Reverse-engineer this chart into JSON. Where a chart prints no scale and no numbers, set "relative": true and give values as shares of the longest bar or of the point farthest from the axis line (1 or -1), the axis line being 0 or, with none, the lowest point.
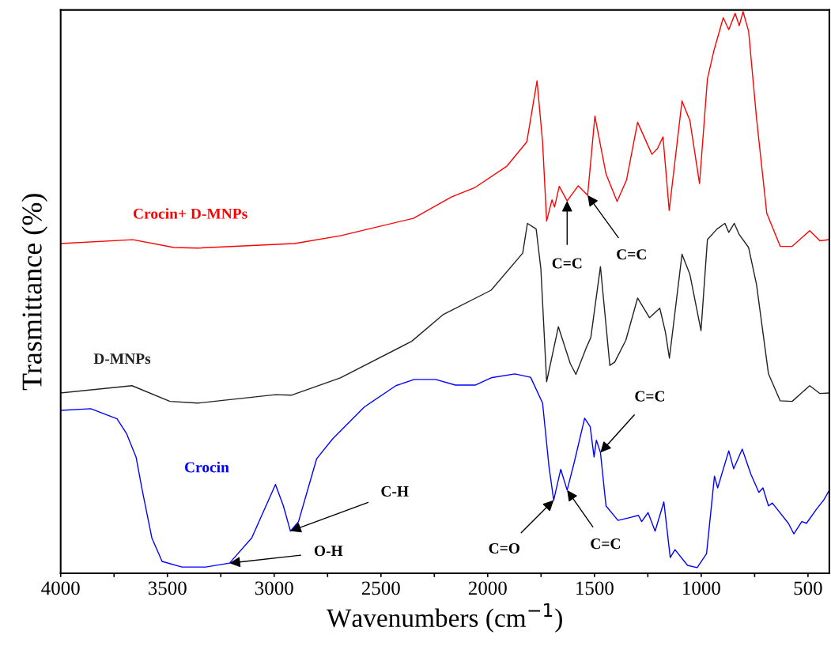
{
  "chart_data": {
    "type": "line",
    "relative": true,
    "xlabel": "Wavenumbers (cm$^{−1}$)",
    "ylabel": "Trasmittance (%)",
    "xlim": [
      4000,
      400
    ],
    "xticks": [
      4000,
      {
        "value": 3750,
        "label": null
      },
      3500,
      {
        "value": 3250,
        "label": null
      },
      3000,
      {
        "value": 2750,
        "label": null
      },
      2500,
      {
        "value": 2250,
        "label": null
      },
      2000,
      {
        "value": 1750,
        "label": null
      },
      1500,
      {
        "value": 1250,
        "label": null
      },
      1000,
      {
        "value": 750,
        "label": null
      },
      500
    ],
    "tick_labels": "x",
    "grid": false,
    "legend": false,
    "marker": "none",
    "line_style": "solid",
    "series": [
      {
        "name": "Crocin+ D-MNPs",
        "color": "#ff0000",
        "x": [
          4000,
          3662,
          3469,
          3358,
          2905,
          2690,
          2348,
          2170,
          2059,
          1910,
          1817,
          1769,
          1743,
          1724,
          1699,
          1687,
          1665,
          1628,
          1576,
          1532,
          1498,
          1446,
          1394,
          1350,
          1298,
          1231,
          1205,
          1179,
          1150,
          1090,
          1053,
          1008,
          971,
          941,
          897,
          871,
          841,
          822,
          804,
          778,
          741,
          693,
          630,
          574,
          492,
          444,
          400
        ],
        "values": [
          0.587,
          0.594,
          0.58,
          0.579,
          0.587,
          0.601,
          0.632,
          0.67,
          0.687,
          0.725,
          0.768,
          0.877,
          0.768,
          0.627,
          0.665,
          0.652,
          0.689,
          0.663,
          0.69,
          0.673,
          0.814,
          0.711,
          0.662,
          0.7,
          0.803,
          0.746,
          0.756,
          0.777,
          0.646,
          0.841,
          0.806,
          0.694,
          0.88,
          0.93,
          0.989,
          0.968,
          0.997,
          0.975,
          1.0,
          0.965,
          0.81,
          0.641,
          0.582,
          0.582,
          0.61,
          0.592,
          0.594
        ]
      },
      {
        "name": "D-MNPs",
        "color": "#222222",
        "x": [
          4000,
          3666,
          3488,
          3358,
          2994,
          2920,
          2690,
          2356,
          2207,
          1984,
          1836,
          1814,
          1773,
          1751,
          1724,
          1669,
          1613,
          1587,
          1539,
          1517,
          1472,
          1428,
          1405,
          1353,
          1298,
          1242,
          1194,
          1168,
          1149,
          1090,
          1053,
          1001,
          971,
          926,
          889,
          871,
          845,
          822,
          778,
          741,
          685,
          630,
          574,
          492,
          444,
          400
        ],
        "values": [
          0.321,
          0.334,
          0.306,
          0.303,
          0.318,
          0.317,
          0.348,
          0.413,
          0.461,
          0.504,
          0.57,
          0.623,
          0.613,
          0.542,
          0.341,
          0.439,
          0.373,
          0.354,
          0.401,
          0.42,
          0.546,
          0.37,
          0.376,
          0.415,
          0.49,
          0.455,
          0.472,
          0.43,
          0.383,
          0.568,
          0.532,
          0.432,
          0.594,
          0.613,
          0.623,
          0.607,
          0.623,
          0.603,
          0.58,
          0.514,
          0.355,
          0.307,
          0.306,
          0.334,
          0.32,
          0.321
        ]
      },
      {
        "name": "Crocin",
        "color": "#0000ff",
        "x": [
          4000,
          3859,
          3736,
          3692,
          3647,
          3618,
          3573,
          3525,
          3432,
          3321,
          3209,
          3105,
          2994,
          2957,
          2924,
          2886,
          2801,
          2727,
          2578,
          2430,
          2344,
          2244,
          2151,
          2059,
          1984,
          1873,
          1799,
          1743,
          1713,
          1691,
          1658,
          1628,
          1595,
          1546,
          1520,
          1502,
          1491,
          1472,
          1446,
          1390,
          1335,
          1294,
          1279,
          1249,
          1216,
          1175,
          1145,
          1123,
          1064,
          1019,
          975,
          938,
          923,
          871,
          848,
          808,
          767,
          730,
          711,
          685,
          667,
          592,
          566,
          529,
          507,
          462,
          425,
          400
        ],
        "values": [
          0.29,
          0.293,
          0.275,
          0.249,
          0.207,
          0.148,
          0.063,
          0.021,
          0.011,
          0.011,
          0.018,
          0.063,
          0.158,
          0.12,
          0.075,
          0.092,
          0.204,
          0.239,
          0.296,
          0.334,
          0.345,
          0.345,
          0.335,
          0.335,
          0.348,
          0.355,
          0.349,
          0.303,
          0.19,
          0.13,
          0.185,
          0.148,
          0.197,
          0.276,
          0.261,
          0.207,
          0.237,
          0.215,
          0.12,
          0.094,
          0.099,
          0.103,
          0.092,
          0.108,
          0.075,
          0.127,
          0.028,
          0.042,
          0.014,
          0.01,
          0.035,
          0.173,
          0.152,
          0.218,
          0.186,
          0.221,
          0.176,
          0.144,
          0.152,
          0.12,
          0.125,
          0.089,
          0.07,
          0.092,
          0.089,
          0.113,
          0.131,
          0.148
        ]
      }
    ],
    "annotations": [
      {
        "text": "C=C",
        "x": 1628,
        "y": 0.663
      },
      {
        "text": "C=C",
        "x": 1532,
        "y": 0.673
      },
      {
        "text": "C-H",
        "x": 2924,
        "y": 0.075
      },
      {
        "text": "O-H",
        "x": 3209,
        "y": 0.018
      },
      {
        "text": "C=O",
        "x": 1691,
        "y": 0.13
      },
      {
        "text": "C=C",
        "x": 1628,
        "y": 0.148
      },
      {
        "text": "C=C",
        "x": 1472,
        "y": 0.215
      }
    ]
  }
}
